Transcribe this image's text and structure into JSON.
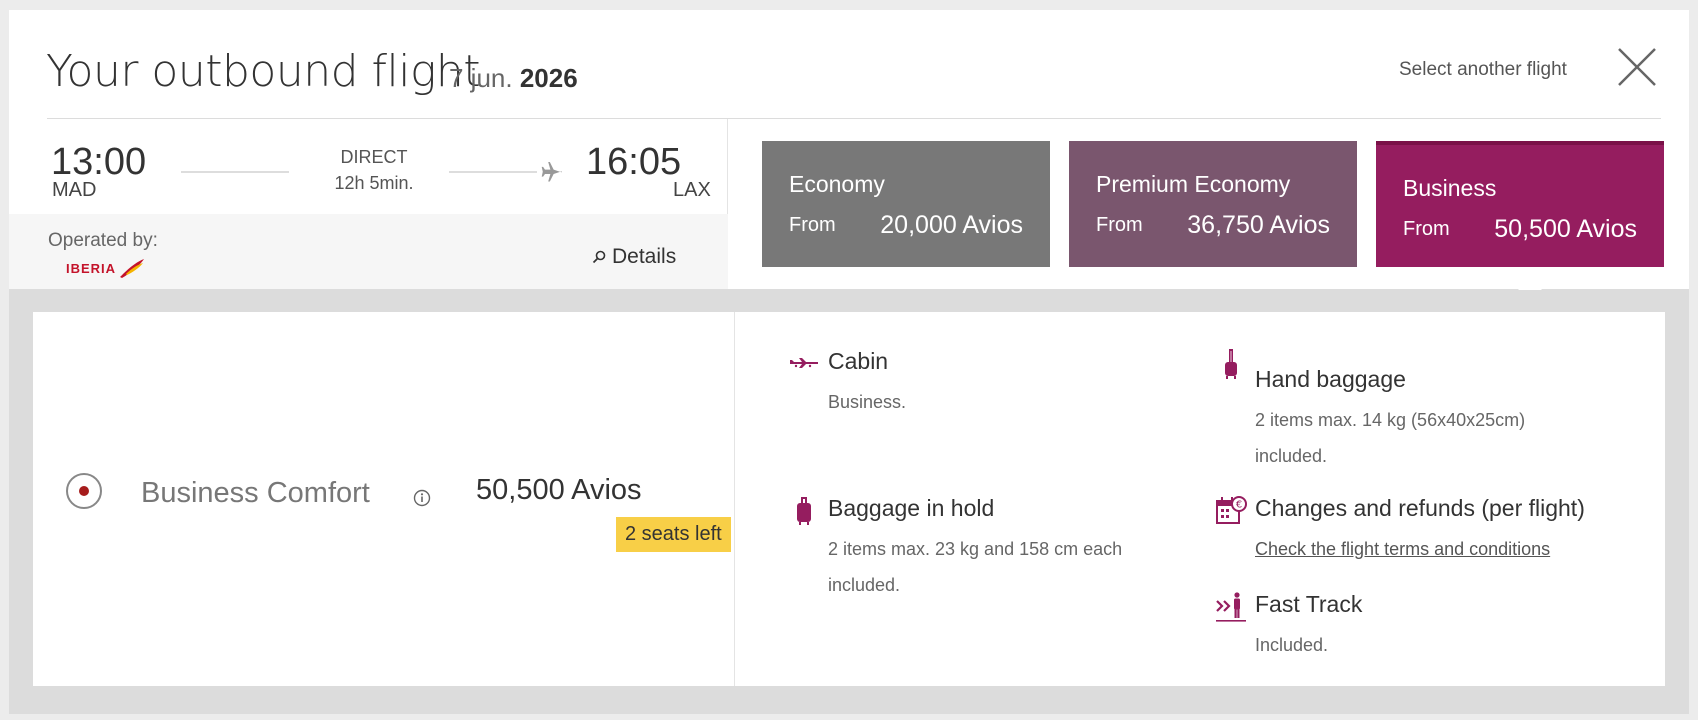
{
  "header": {
    "title": "Your outbound flight",
    "date_day": "7 jun.",
    "date_year": "2026",
    "select_another": "Select another flight"
  },
  "flight": {
    "departure_time": "13:00",
    "departure_airport": "MAD",
    "arrival_time": "16:05",
    "arrival_airport": "LAX",
    "stops": "DIRECT",
    "duration": "12h 5min.",
    "operated_by_label": "Operated by:",
    "operator": "IBERIA",
    "details_label": "Details"
  },
  "fares": [
    {
      "name": "Economy",
      "from_label": "From",
      "price": "20,000 Avios",
      "color": "#787878"
    },
    {
      "name": "Premium Economy",
      "from_label": "From",
      "price": "36,750 Avios",
      "color": "#7a566e"
    },
    {
      "name": "Business",
      "from_label": "From",
      "price": "50,500 Avios",
      "color": "#951d5f",
      "selected": true
    }
  ],
  "option": {
    "name": "Business Comfort",
    "price": "50,500 Avios",
    "seats_badge": "2 seats left",
    "selected": true
  },
  "features": {
    "cabin": {
      "title": "Cabin",
      "desc": "Business.",
      "icon": "plane-icon"
    },
    "baggage_hold": {
      "title": "Baggage in hold",
      "line1": "2 items max. 23 kg and 158 cm each",
      "line2": "included.",
      "icon": "suitcase-icon"
    },
    "hand_baggage": {
      "title": "Hand baggage",
      "line1": "2 items max. 14 kg (56x40x25cm)",
      "line2": "included.",
      "icon": "cabin-bag-icon"
    },
    "changes": {
      "title": "Changes and refunds (per flight)",
      "link": "Check the flight terms and conditions",
      "icon": "calendar-refund-icon"
    },
    "fast_track": {
      "title": "Fast Track",
      "desc": "Included.",
      "icon": "fast-track-icon"
    }
  },
  "colors": {
    "accent": "#951d5f",
    "badge": "#f8cf47",
    "brand_red": "#c4132a"
  }
}
